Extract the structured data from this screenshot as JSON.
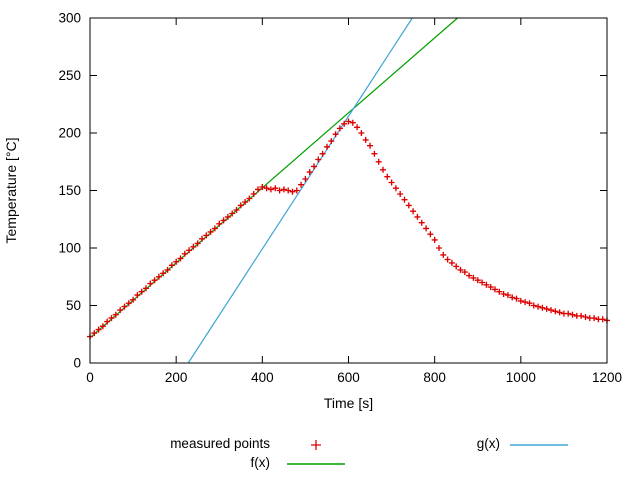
{
  "colors": {
    "background": "#ffffff",
    "axis": "#000000"
  },
  "chart_data": {
    "type": "scatter",
    "title": "",
    "xlabel": "Time [s]",
    "ylabel": "Temperature [°C]",
    "xlim": [
      0,
      1200
    ],
    "ylim": [
      0,
      300
    ],
    "xticks": [
      0,
      200,
      400,
      600,
      800,
      1000,
      1200
    ],
    "yticks": [
      0,
      50,
      100,
      150,
      200,
      250,
      300
    ],
    "grid": false,
    "legend_position": "below",
    "series": [
      {
        "name": "measured points",
        "type": "points",
        "marker": "plus",
        "color": "#dd0000",
        "points": [
          [
            0,
            23
          ],
          [
            10,
            26
          ],
          [
            20,
            29
          ],
          [
            30,
            32
          ],
          [
            40,
            36
          ],
          [
            50,
            39
          ],
          [
            60,
            42
          ],
          [
            70,
            46
          ],
          [
            80,
            49
          ],
          [
            90,
            52
          ],
          [
            100,
            55
          ],
          [
            110,
            59
          ],
          [
            120,
            62
          ],
          [
            130,
            65
          ],
          [
            140,
            69
          ],
          [
            150,
            72
          ],
          [
            160,
            75
          ],
          [
            170,
            78
          ],
          [
            180,
            81
          ],
          [
            190,
            85
          ],
          [
            200,
            88
          ],
          [
            210,
            91
          ],
          [
            220,
            95
          ],
          [
            230,
            98
          ],
          [
            240,
            101
          ],
          [
            250,
            104
          ],
          [
            260,
            108
          ],
          [
            270,
            111
          ],
          [
            280,
            114
          ],
          [
            290,
            117
          ],
          [
            300,
            121
          ],
          [
            310,
            124
          ],
          [
            320,
            127
          ],
          [
            330,
            130
          ],
          [
            340,
            133
          ],
          [
            350,
            137
          ],
          [
            360,
            140
          ],
          [
            370,
            143
          ],
          [
            380,
            147
          ],
          [
            390,
            151
          ],
          [
            400,
            153
          ],
          [
            410,
            152
          ],
          [
            420,
            151
          ],
          [
            430,
            152
          ],
          [
            440,
            150
          ],
          [
            450,
            151
          ],
          [
            460,
            150
          ],
          [
            470,
            149
          ],
          [
            480,
            150
          ],
          [
            490,
            155
          ],
          [
            500,
            160
          ],
          [
            510,
            166
          ],
          [
            520,
            171
          ],
          [
            530,
            177
          ],
          [
            540,
            182
          ],
          [
            550,
            188
          ],
          [
            560,
            193
          ],
          [
            570,
            199
          ],
          [
            580,
            204
          ],
          [
            590,
            208
          ],
          [
            600,
            210
          ],
          [
            610,
            209
          ],
          [
            620,
            205
          ],
          [
            630,
            200
          ],
          [
            640,
            194
          ],
          [
            650,
            189
          ],
          [
            660,
            182
          ],
          [
            670,
            175
          ],
          [
            680,
            168
          ],
          [
            690,
            162
          ],
          [
            700,
            157
          ],
          [
            710,
            152
          ],
          [
            720,
            147
          ],
          [
            730,
            142
          ],
          [
            740,
            137
          ],
          [
            750,
            132
          ],
          [
            760,
            127
          ],
          [
            770,
            122
          ],
          [
            780,
            117
          ],
          [
            790,
            112
          ],
          [
            800,
            107
          ],
          [
            810,
            100
          ],
          [
            820,
            94
          ],
          [
            830,
            90
          ],
          [
            840,
            87
          ],
          [
            850,
            84
          ],
          [
            860,
            81
          ],
          [
            870,
            79
          ],
          [
            880,
            76
          ],
          [
            890,
            74
          ],
          [
            900,
            72
          ],
          [
            910,
            70
          ],
          [
            920,
            68
          ],
          [
            930,
            66
          ],
          [
            940,
            64
          ],
          [
            950,
            62
          ],
          [
            960,
            60
          ],
          [
            970,
            59
          ],
          [
            980,
            57
          ],
          [
            990,
            56
          ],
          [
            1000,
            54
          ],
          [
            1010,
            53
          ],
          [
            1020,
            52
          ],
          [
            1030,
            50
          ],
          [
            1040,
            49
          ],
          [
            1050,
            48
          ],
          [
            1060,
            47
          ],
          [
            1070,
            46
          ],
          [
            1080,
            45
          ],
          [
            1090,
            44
          ],
          [
            1100,
            43
          ],
          [
            1110,
            43
          ],
          [
            1120,
            42
          ],
          [
            1130,
            41
          ],
          [
            1140,
            41
          ],
          [
            1150,
            40
          ],
          [
            1160,
            39
          ],
          [
            1170,
            39
          ],
          [
            1180,
            38
          ],
          [
            1190,
            38
          ],
          [
            1200,
            37
          ]
        ]
      },
      {
        "name": "f(x)",
        "type": "line",
        "color": "#00a000",
        "points": [
          [
            0,
            22
          ],
          [
            853,
            300
          ]
        ]
      },
      {
        "name": "g(x)",
        "type": "line",
        "color": "#3fa5d6",
        "points": [
          [
            228,
            0
          ],
          [
            748,
            300
          ]
        ]
      }
    ]
  }
}
